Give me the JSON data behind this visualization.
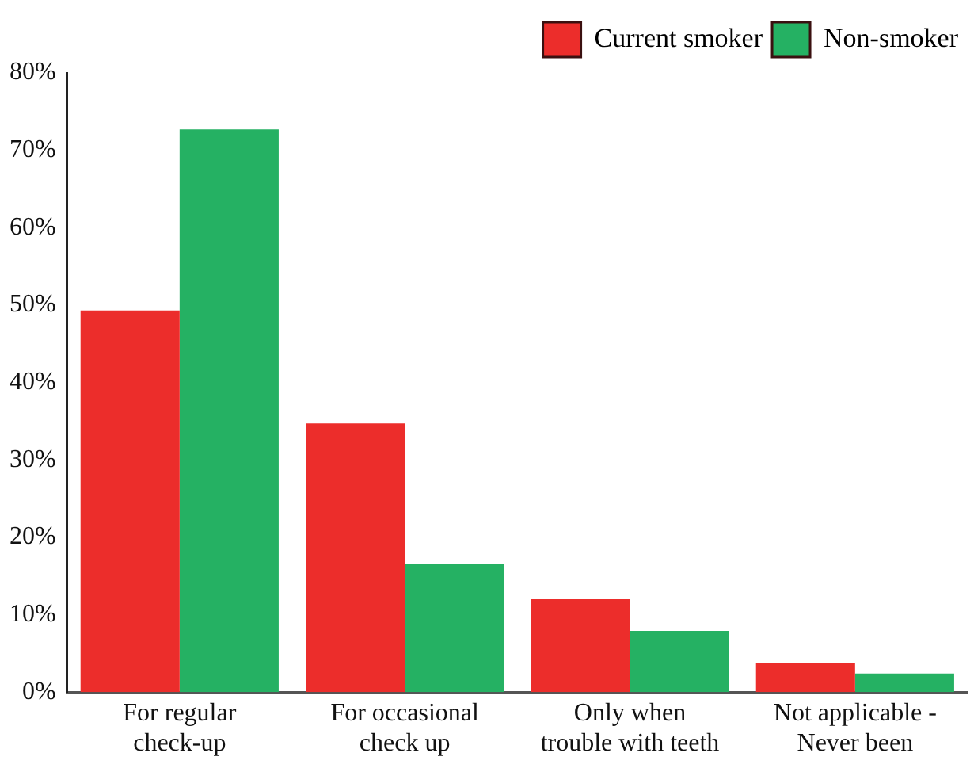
{
  "chart_data": {
    "type": "bar",
    "categories": [
      "For regular\ncheck-up",
      "For occasional\ncheck up",
      "Only when\ntrouble with teeth",
      "Not applicable -\nNever been"
    ],
    "series": [
      {
        "name": "Current smoker",
        "color": "#ec2d2b",
        "values": [
          49.3,
          34.7,
          12.0,
          3.8
        ]
      },
      {
        "name": "Non-smoker",
        "color": "#25b163",
        "values": [
          72.7,
          16.5,
          7.9,
          2.4
        ]
      }
    ],
    "ylim": [
      0,
      80
    ],
    "yticks": [
      {
        "value": 0,
        "label": "0%"
      },
      {
        "value": 10,
        "label": "10%"
      },
      {
        "value": 20,
        "label": "20%"
      },
      {
        "value": 30,
        "label": "30%"
      },
      {
        "value": 40,
        "label": "40%"
      },
      {
        "value": 50,
        "label": "50%"
      },
      {
        "value": 60,
        "label": "60%"
      },
      {
        "value": 70,
        "label": "70%"
      },
      {
        "value": 80,
        "label": "80%"
      }
    ],
    "grid": false,
    "legend": "top right"
  }
}
